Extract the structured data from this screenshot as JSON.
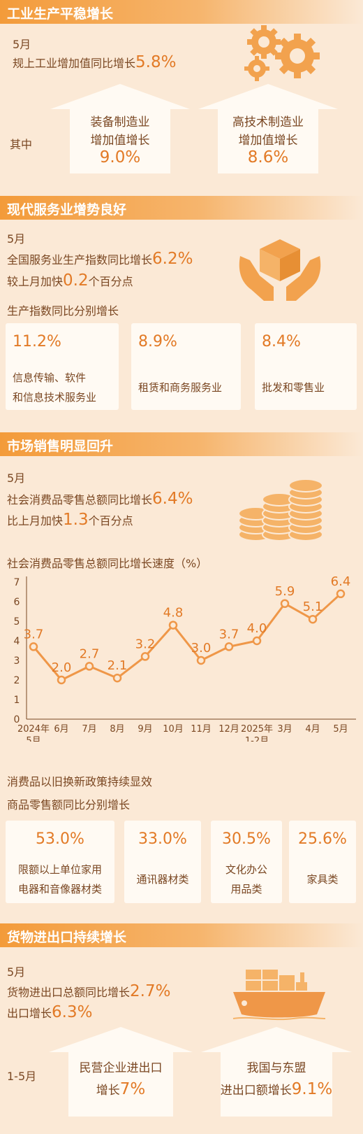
{
  "industry": {
    "heading": "工业生产平稳增长",
    "month": "5月",
    "line1_prefix": "规上工业增加值同比增长",
    "line1_value": "5.8%",
    "among": "其中",
    "left": {
      "line1": "装备制造业",
      "line2": "增加值增长",
      "value": "9.0%"
    },
    "right": {
      "line1": "高技术制造业",
      "line2": "增加值增长",
      "value": "8.6%"
    },
    "icon": "gears-icon"
  },
  "services": {
    "heading": "现代服务业增势良好",
    "month": "5月",
    "line1_prefix": "全国服务业生产指数同比增长",
    "line1_value": "6.2%",
    "line2_prefix": "较上月加快",
    "line2_value": "0.2",
    "line2_suffix": "个百分点",
    "sub": "生产指数同比分别增长",
    "cards": [
      {
        "value": "11.2%",
        "label1": "信息传输、软件",
        "label2": "和信息技术服务业"
      },
      {
        "value": "8.9%",
        "label1": "租赁和商务服务业",
        "label2": ""
      },
      {
        "value": "8.4%",
        "label1": "批发和零售业",
        "label2": ""
      }
    ],
    "icon": "hands-box-icon"
  },
  "retail": {
    "heading": "市场销售明显回升",
    "month": "5月",
    "line1_prefix": "社会消费品零售总额同比增长",
    "line1_value": "6.4%",
    "line2_prefix": "比上月加快",
    "line2_value": "1.3",
    "line2_suffix": "个百分点",
    "chart_title": "社会消费品零售总额同比增长速度（%）",
    "sub1": "消费品以旧换新政策持续显效",
    "sub2": "商品零售额同比分别增长",
    "cards": [
      {
        "value": "53.0%",
        "label1": "限额以上单位家用",
        "label2": "电器和音像器材类"
      },
      {
        "value": "33.0%",
        "label1": "通讯器材类",
        "label2": ""
      },
      {
        "value": "30.5%",
        "label1": "文化办公",
        "label2": "用品类"
      },
      {
        "value": "25.6%",
        "label1": "家具类",
        "label2": ""
      }
    ],
    "icon": "coins-icon"
  },
  "chart_data": {
    "type": "line",
    "title": "社会消费品零售总额同比增长速度（%）",
    "categories": [
      "2024年5月",
      "6月",
      "7月",
      "8月",
      "9月",
      "10月",
      "11月",
      "12月",
      "2025年1-2月",
      "3月",
      "4月",
      "5月"
    ],
    "tick_lines": [
      [
        "2024年",
        "5月"
      ],
      [
        "6月"
      ],
      [
        "7月"
      ],
      [
        "8月"
      ],
      [
        "9月"
      ],
      [
        "10月"
      ],
      [
        "11月"
      ],
      [
        "12月"
      ],
      [
        "2025年",
        "1-2月"
      ],
      [
        "3月"
      ],
      [
        "4月"
      ],
      [
        "5月"
      ]
    ],
    "values": [
      3.7,
      2.0,
      2.7,
      2.1,
      3.2,
      4.8,
      3.0,
      3.7,
      4.0,
      5.9,
      5.1,
      6.4
    ],
    "value_labels": [
      "3.7",
      "2.0",
      "2.7",
      "2.1",
      "3.2",
      "4.8",
      "3.0",
      "3.7",
      "4.0",
      "5.9",
      "5.1",
      "6.4"
    ],
    "ylim": [
      0,
      7
    ],
    "yticks": [
      0,
      1,
      2,
      3,
      4,
      5,
      6,
      7
    ],
    "line_color": "#ef9748",
    "grid": false
  },
  "trade": {
    "heading": "货物进出口持续增长",
    "month": "5月",
    "line1_prefix": "货物进出口总额同比增长",
    "line1_value": "2.7%",
    "line2_prefix": "出口增长",
    "line2_value": "6.3%",
    "period": "1-5月",
    "left": {
      "line1": "民营企业进出口",
      "line2_prefix": "增长",
      "value": "7%"
    },
    "right": {
      "line1": "我国与东盟",
      "line2_prefix": "进出口额增长",
      "value": "9.1%"
    },
    "icon": "cargo-ship-icon"
  },
  "colors": {
    "accent": "#e27a26",
    "band": "#f39b3a",
    "background": "#fbe9d6",
    "text": "#7a4722"
  }
}
